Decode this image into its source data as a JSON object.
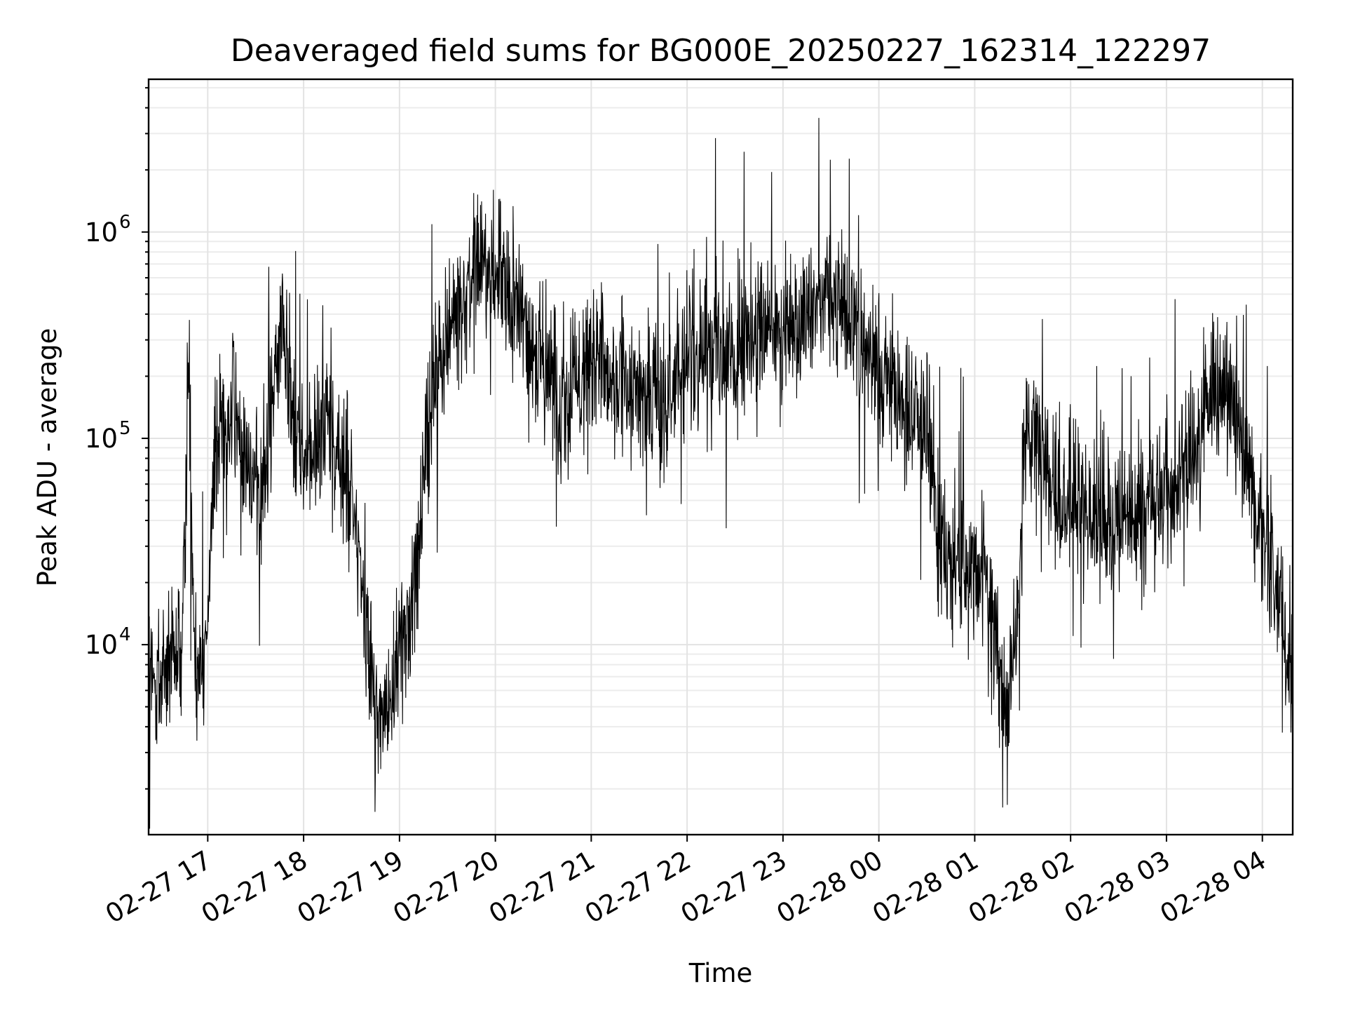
{
  "chart_data": {
    "type": "line",
    "title": "Deaveraged field sums for BG000E_20250227_162314_122297",
    "xlabel": "Time",
    "ylabel": "Peak ADU - average",
    "yscale": "log",
    "ylim": [
      1200,
      5500000
    ],
    "y_ticks": [
      {
        "base": "10",
        "exp": "4",
        "value": 10000
      },
      {
        "base": "10",
        "exp": "5",
        "value": 100000
      },
      {
        "base": "10",
        "exp": "6",
        "value": 1000000
      }
    ],
    "xlim": [
      "2025-02-27 16:23",
      "2025-02-28 04:19"
    ],
    "x_ticks": [
      {
        "label": "02-27 17",
        "time": "2025-02-27 17:00"
      },
      {
        "label": "02-27 18",
        "time": "2025-02-27 18:00"
      },
      {
        "label": "02-27 19",
        "time": "2025-02-27 19:00"
      },
      {
        "label": "02-27 20",
        "time": "2025-02-27 20:00"
      },
      {
        "label": "02-27 21",
        "time": "2025-02-27 21:00"
      },
      {
        "label": "02-27 22",
        "time": "2025-02-27 22:00"
      },
      {
        "label": "02-27 23",
        "time": "2025-02-27 23:00"
      },
      {
        "label": "02-28 00",
        "time": "2025-02-28 00:00"
      },
      {
        "label": "02-28 01",
        "time": "2025-02-28 01:00"
      },
      {
        "label": "02-28 02",
        "time": "2025-02-28 02:00"
      },
      {
        "label": "02-28 03",
        "time": "2025-02-28 03:00"
      },
      {
        "label": "02-28 04",
        "time": "2025-02-28 04:00"
      }
    ],
    "grid": true,
    "legend": "none",
    "series": [
      {
        "color": "#000000",
        "x": [
          "2025-02-27 16:23",
          "2025-02-27 16:30",
          "2025-02-27 16:37",
          "2025-02-27 16:44",
          "2025-02-27 16:48",
          "2025-02-27 16:52",
          "2025-02-27 16:57",
          "2025-02-27 17:05",
          "2025-02-27 17:15",
          "2025-02-27 17:25",
          "2025-02-27 17:35",
          "2025-02-27 17:42",
          "2025-02-27 17:47",
          "2025-02-27 17:55",
          "2025-02-27 18:05",
          "2025-02-27 18:15",
          "2025-02-27 18:25",
          "2025-02-27 18:32",
          "2025-02-27 18:38",
          "2025-02-27 18:45",
          "2025-02-27 18:52",
          "2025-02-27 19:00",
          "2025-02-27 19:08",
          "2025-02-27 19:15",
          "2025-02-27 19:20",
          "2025-02-27 19:30",
          "2025-02-27 19:40",
          "2025-02-27 19:48",
          "2025-02-27 19:55",
          "2025-02-27 20:05",
          "2025-02-27 20:15",
          "2025-02-27 20:30",
          "2025-02-27 20:45",
          "2025-02-27 21:00",
          "2025-02-27 21:15",
          "2025-02-27 21:30",
          "2025-02-27 21:45",
          "2025-02-27 22:00",
          "2025-02-27 22:15",
          "2025-02-27 22:30",
          "2025-02-27 22:45",
          "2025-02-27 23:00",
          "2025-02-27 23:15",
          "2025-02-27 23:30",
          "2025-02-27 23:45",
          "2025-02-28 00:00",
          "2025-02-28 00:15",
          "2025-02-28 00:30",
          "2025-02-28 00:36",
          "2025-02-28 00:45",
          "2025-02-28 00:55",
          "2025-02-28 01:05",
          "2025-02-28 01:12",
          "2025-02-28 01:18",
          "2025-02-28 01:25",
          "2025-02-28 01:32",
          "2025-02-28 01:40",
          "2025-02-28 01:50",
          "2025-02-28 02:00",
          "2025-02-28 02:15",
          "2025-02-28 02:30",
          "2025-02-28 02:45",
          "2025-02-28 03:00",
          "2025-02-28 03:15",
          "2025-02-28 03:25",
          "2025-02-28 03:35",
          "2025-02-28 03:45",
          "2025-02-28 03:52",
          "2025-02-28 04:00",
          "2025-02-28 04:05",
          "2025-02-28 04:10",
          "2025-02-28 04:15",
          "2025-02-28 04:19"
        ],
        "y": [
          6000,
          6500,
          8000,
          9000,
          250000,
          9000,
          6000,
          100000,
          150000,
          70000,
          60000,
          200000,
          400000,
          90000,
          80000,
          120000,
          70000,
          40000,
          15000,
          5000,
          4000,
          10000,
          15000,
          60000,
          150000,
          350000,
          500000,
          700000,
          650000,
          550000,
          400000,
          220000,
          150000,
          250000,
          180000,
          160000,
          150000,
          250000,
          300000,
          250000,
          300000,
          320000,
          450000,
          520000,
          400000,
          200000,
          150000,
          100000,
          40000,
          25000,
          22000,
          25000,
          12000,
          5000,
          9000,
          100000,
          90000,
          50000,
          60000,
          40000,
          35000,
          45000,
          50000,
          70000,
          150000,
          200000,
          120000,
          60000,
          35000,
          25000,
          18000,
          8000,
          12000
        ]
      }
    ]
  }
}
